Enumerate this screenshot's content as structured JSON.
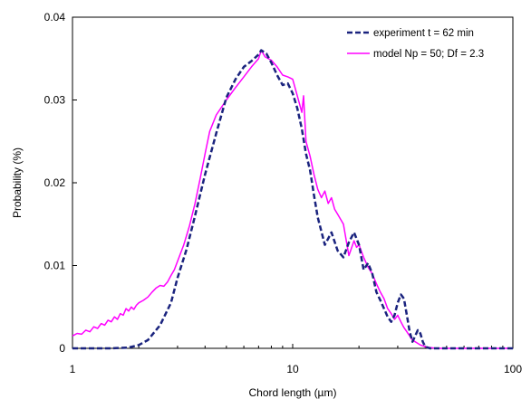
{
  "chart_data": {
    "type": "line",
    "title": "",
    "xlabel": "Chord length (µm)",
    "ylabel": "Probability (%)",
    "x_scale": "log",
    "xlim": [
      1,
      100
    ],
    "ylim": [
      0,
      0.04
    ],
    "x_ticks": [
      1,
      10,
      100
    ],
    "x_tick_labels": [
      "1",
      "10",
      "100"
    ],
    "y_ticks": [
      0,
      0.01,
      0.02,
      0.03,
      0.04
    ],
    "y_tick_labels": [
      "0",
      "0.01",
      "0.02",
      "0.03",
      "0.04"
    ],
    "grid": false,
    "legend_position": "top-right",
    "series": [
      {
        "name": "experiment t = 62 min",
        "color": "#1a237e",
        "style": "dashed",
        "x": [
          1,
          1.5,
          1.8,
          2.0,
          2.2,
          2.5,
          2.8,
          3.0,
          3.3,
          3.6,
          4.0,
          4.5,
          5.0,
          5.5,
          6.0,
          6.5,
          7.0,
          7.2,
          7.6,
          8.0,
          8.5,
          9.0,
          9.5,
          10.0,
          10.5,
          11.0,
          11.5,
          12.0,
          12.5,
          13.0,
          14.0,
          15.0,
          16.0,
          17.0,
          18.0,
          19.0,
          20.0,
          21.0,
          22.0,
          23.0,
          24.0,
          25.0,
          26.0,
          27.0,
          28.0,
          29.0,
          30.0,
          31.0,
          32.0,
          33.0,
          34.0,
          35.0,
          36.0,
          37.0,
          38.0,
          39.0,
          40.0,
          42.0,
          45.0,
          50.0,
          100.0
        ],
        "y": [
          0,
          0,
          0.0001,
          0.0004,
          0.001,
          0.0028,
          0.0055,
          0.0085,
          0.012,
          0.016,
          0.021,
          0.026,
          0.0303,
          0.0325,
          0.034,
          0.0347,
          0.0355,
          0.036,
          0.0356,
          0.0345,
          0.033,
          0.0318,
          0.032,
          0.0308,
          0.029,
          0.0265,
          0.0235,
          0.0215,
          0.0185,
          0.0158,
          0.0125,
          0.014,
          0.0118,
          0.011,
          0.0128,
          0.014,
          0.0125,
          0.0095,
          0.0103,
          0.009,
          0.0068,
          0.0058,
          0.0048,
          0.0038,
          0.0032,
          0.004,
          0.0055,
          0.0065,
          0.006,
          0.004,
          0.002,
          0.0008,
          0.0015,
          0.0022,
          0.0018,
          0.0008,
          0.0002,
          0,
          0,
          0,
          0
        ]
      },
      {
        "name": "model Np = 50; Df = 2.3",
        "color": "#ff00ff",
        "style": "solid",
        "x": [
          1,
          1.05,
          1.1,
          1.15,
          1.2,
          1.25,
          1.3,
          1.35,
          1.4,
          1.45,
          1.5,
          1.55,
          1.6,
          1.65,
          1.7,
          1.75,
          1.8,
          1.85,
          1.9,
          1.95,
          2.0,
          2.1,
          2.2,
          2.3,
          2.4,
          2.5,
          2.6,
          2.7,
          2.8,
          2.9,
          3.0,
          3.2,
          3.4,
          3.6,
          3.8,
          4.0,
          4.2,
          4.5,
          5.0,
          5.5,
          6.0,
          6.5,
          7.0,
          7.2,
          7.5,
          8.0,
          8.5,
          9.0,
          9.5,
          10.0,
          10.5,
          11.0,
          11.2,
          11.5,
          12.0,
          12.5,
          13.0,
          13.5,
          14.0,
          14.5,
          15.0,
          15.5,
          16.0,
          17.0,
          18.0,
          19.0,
          19.5,
          20.0,
          21.0,
          22.0,
          23.0,
          24.0,
          25.0,
          26.0,
          27.0,
          28.0,
          29.0,
          30.0,
          31.0,
          32.0,
          33.0,
          34.0,
          35.0,
          36.0,
          38.0,
          40.0,
          42.0,
          45.0,
          50.0,
          60.0,
          100.0
        ],
        "y": [
          0.0015,
          0.0018,
          0.0017,
          0.0022,
          0.002,
          0.0026,
          0.0024,
          0.003,
          0.0028,
          0.0034,
          0.0032,
          0.0038,
          0.0035,
          0.0042,
          0.004,
          0.0048,
          0.0045,
          0.005,
          0.0047,
          0.0052,
          0.0055,
          0.0058,
          0.0062,
          0.0068,
          0.0073,
          0.0076,
          0.0075,
          0.008,
          0.0088,
          0.0095,
          0.0105,
          0.0125,
          0.0148,
          0.0175,
          0.0205,
          0.0235,
          0.0262,
          0.0282,
          0.03,
          0.0315,
          0.0328,
          0.034,
          0.035,
          0.036,
          0.0352,
          0.0348,
          0.034,
          0.033,
          0.0328,
          0.0325,
          0.0305,
          0.0285,
          0.0305,
          0.025,
          0.0232,
          0.021,
          0.0192,
          0.0182,
          0.019,
          0.0175,
          0.0182,
          0.0168,
          0.0162,
          0.015,
          0.0112,
          0.013,
          0.0122,
          0.0125,
          0.011,
          0.0098,
          0.009,
          0.0078,
          0.0068,
          0.006,
          0.0048,
          0.0042,
          0.0035,
          0.004,
          0.0032,
          0.0025,
          0.002,
          0.0015,
          0.001,
          0.0008,
          0.0004,
          0.0002,
          0.0001,
          0,
          0,
          0,
          0
        ]
      }
    ]
  }
}
